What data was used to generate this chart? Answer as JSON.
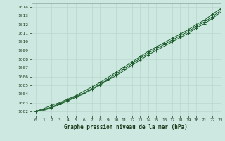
{
  "title": "Graphe pression niveau de la mer (hPa)",
  "background_color": "#cce8e0",
  "grid_color": "#b8d8cc",
  "line_color": "#1a5c2a",
  "marker_color": "#1a5c2a",
  "xlim": [
    -0.5,
    23
  ],
  "ylim": [
    1001.5,
    1014.5
  ],
  "xticks": [
    0,
    1,
    2,
    3,
    4,
    5,
    6,
    7,
    8,
    9,
    10,
    11,
    12,
    13,
    14,
    15,
    16,
    17,
    18,
    19,
    20,
    21,
    22,
    23
  ],
  "yticks": [
    1002,
    1003,
    1004,
    1005,
    1006,
    1007,
    1008,
    1009,
    1010,
    1011,
    1012,
    1013,
    1014
  ],
  "series": [
    [
      1002.0,
      1002.3,
      1002.7,
      1003.0,
      1003.4,
      1003.8,
      1004.3,
      1004.8,
      1005.3,
      1005.9,
      1006.5,
      1007.1,
      1007.7,
      1008.3,
      1008.9,
      1009.4,
      1009.9,
      1010.4,
      1010.9,
      1011.4,
      1012.0,
      1012.5,
      1013.2,
      1013.8
    ],
    [
      1002.0,
      1002.2,
      1002.5,
      1002.9,
      1003.3,
      1003.7,
      1004.1,
      1004.6,
      1005.1,
      1005.7,
      1006.3,
      1006.9,
      1007.5,
      1008.1,
      1008.7,
      1009.2,
      1009.7,
      1010.2,
      1010.7,
      1011.2,
      1011.8,
      1012.3,
      1012.9,
      1013.6
    ],
    [
      1002.0,
      1002.1,
      1002.4,
      1002.8,
      1003.2,
      1003.6,
      1004.0,
      1004.5,
      1005.0,
      1005.6,
      1006.1,
      1006.7,
      1007.3,
      1007.9,
      1008.5,
      1009.0,
      1009.5,
      1010.0,
      1010.5,
      1011.0,
      1011.6,
      1012.1,
      1012.7,
      1013.4
    ]
  ]
}
